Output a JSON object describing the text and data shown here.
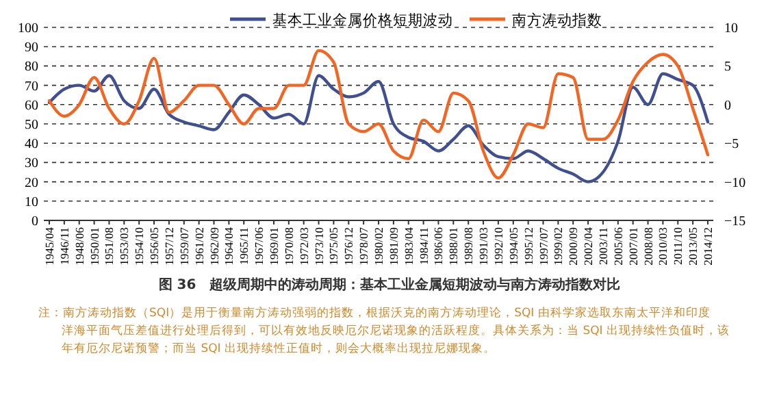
{
  "chart_data": {
    "type": "line",
    "title": "图 36　超级周期中的涛动周期：基本工业金属短期波动与南方涛动指数对比",
    "categories": [
      "1945/04",
      "1946/11",
      "1948/06",
      "1950/01",
      "1951/08",
      "1953/03",
      "1954/10",
      "1956/05",
      "1957/12",
      "1959/07",
      "1961/02",
      "1962/09",
      "1964/04",
      "1965/11",
      "1967/06",
      "1969/01",
      "1970/08",
      "1972/03",
      "1973/10",
      "1975/05",
      "1976/12",
      "1978/07",
      "1980/02",
      "1981/09",
      "1983/04",
      "1984/11",
      "1986/06",
      "1988/01",
      "1989/08",
      "1991/03",
      "1992/10",
      "1994/05",
      "1995/12",
      "1997/07",
      "1999/02",
      "2000/09",
      "2002/04",
      "2003/11",
      "2005/06",
      "2007/01",
      "2008/08",
      "2010/03",
      "2011/10",
      "2013/05",
      "2014/12"
    ],
    "series": [
      {
        "name": "基本工业金属价格短期波动",
        "color": "#3f4f8f",
        "values": [
          61,
          68,
          70,
          67,
          75,
          62,
          58,
          68,
          55,
          51,
          49,
          47,
          56,
          65,
          60,
          53,
          55,
          50,
          75,
          68,
          64,
          66,
          72,
          50,
          43,
          41,
          36,
          42,
          49,
          39,
          33,
          32,
          36,
          32,
          27,
          24,
          20,
          25,
          41,
          69,
          60,
          76,
          73,
          70,
          51
        ]
      },
      {
        "name": "南方涛动指数",
        "color": "#f26522",
        "axis": "y2",
        "values": [
          0.5,
          -1.5,
          0,
          3.5,
          -0.5,
          -2.5,
          0.5,
          6,
          -1,
          0.5,
          2.5,
          2.5,
          0,
          -2.5,
          -0.5,
          -0.5,
          2.5,
          2.5,
          7,
          5.5,
          -2.5,
          -3.5,
          -2.5,
          -6,
          -7,
          -2,
          -3.5,
          1.5,
          0.5,
          -6,
          -9.5,
          -6.5,
          -2.5,
          -3,
          4,
          3.5,
          -4.5,
          -4.5,
          -2,
          3,
          5.5,
          6.5,
          5,
          -0.5,
          -6.5
        ]
      }
    ],
    "ylim": [
      0,
      100
    ],
    "yticks": [
      0,
      10,
      20,
      30,
      40,
      50,
      60,
      70,
      80,
      90,
      100
    ],
    "y2lim": [
      -15,
      10
    ],
    "y2ticks": [
      -15,
      -10,
      -5,
      0,
      5,
      10
    ],
    "grid": "y",
    "legend": "top",
    "line_style": "solid",
    "marker": "none",
    "annotations": [
      "注：南方涛动指数（SQI）是用于衡量南方涛动强弱的指数，根据沃克的南方涛动理论，SQI 由科学家选取东南太平洋和印度洋海平面气压差值进行处理后得到，可以有效地反映厄尔尼诺现象的活跃程度。具体关系为：当 SQI 出现持续性负值时，该年有厄尔尼诺预警；而当 SQI 出现持续性正值时，则会大概率出现拉尼娜现象。"
    ]
  }
}
